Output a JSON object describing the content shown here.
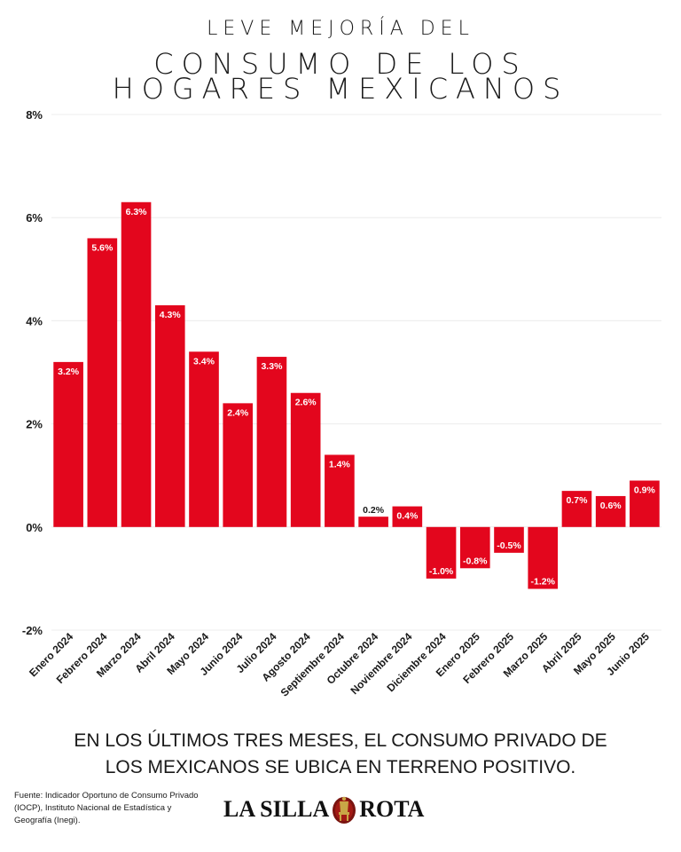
{
  "title": {
    "line1": "LEVE MEJORÍA DEL",
    "line2": "CONSUMO DE LOS",
    "line3": "HOGARES MEXICANOS"
  },
  "chart_data": {
    "type": "bar",
    "categories": [
      "Enero 2024",
      "Febrero 2024",
      "Marzo 2024",
      "Abril 2024",
      "Mayo 2024",
      "Junio 2024",
      "Julio 2024",
      "Agosto 2024",
      "Septiembre 2024",
      "Octubre 2024",
      "Noviembre 2024",
      "Diciembre 2024",
      "Enero 2025",
      "Febrero 2025",
      "Marzo 2025",
      "Abril 2025",
      "Mayo 2025",
      "Junio 2025"
    ],
    "values": [
      3.2,
      5.6,
      6.3,
      4.3,
      3.4,
      2.4,
      3.3,
      2.6,
      1.4,
      0.2,
      0.4,
      -1.0,
      -0.8,
      -0.5,
      -1.2,
      0.7,
      0.6,
      0.9
    ],
    "value_labels": [
      "3.2%",
      "5.6%",
      "6.3%",
      "4.3%",
      "3.4%",
      "2.4%",
      "3.3%",
      "2.6%",
      "1.4%",
      "0.2%",
      "0.4%",
      "-1.0%",
      "-0.8%",
      "-0.5%",
      "-1.2%",
      "0.7%",
      "0.6%",
      "0.9%"
    ],
    "yticks": [
      -2,
      0,
      2,
      4,
      6,
      8
    ],
    "ytick_labels": [
      "-2%",
      "0%",
      "2%",
      "4%",
      "6%",
      "8%"
    ],
    "ylim": [
      -2,
      8
    ],
    "xlabel": "",
    "ylabel": "",
    "grid": true,
    "bar_color": "#e3061d"
  },
  "subtitle": {
    "line1": "EN LOS ÚLTIMOS TRES MESES, EL CONSUMO PRIVADO DE",
    "line2": "LOS MEXICANOS SE UBICA EN TERRENO POSITIVO."
  },
  "source": "Fuente: Indicador Oportuno de Consumo Privado (IOCP), Instituto Nacional de Estadística y Geografía (Inegi).",
  "logo": {
    "left": "LA SILLA",
    "right": "ROTA",
    "emblem": "chair-emblem-icon"
  }
}
